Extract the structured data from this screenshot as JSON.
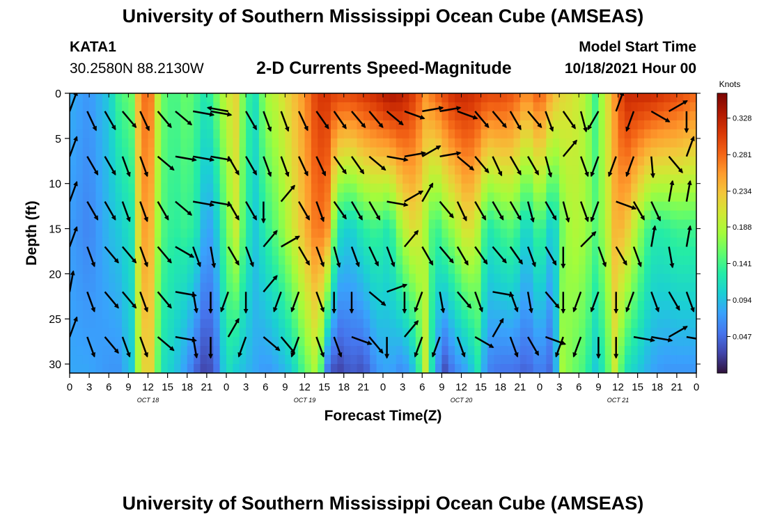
{
  "header": {
    "title": "University of Southern Mississippi Ocean Cube (AMSEAS)",
    "station_id": "KATA1",
    "location": "30.2580N  88.2130W",
    "subtitle": "2-D Currents Speed-Magnitude",
    "model_start_label": "Model Start Time",
    "model_start_value": "10/18/2021 Hour 00"
  },
  "footer": {
    "title": "University of Southern Mississippi Ocean Cube (AMSEAS)"
  },
  "chart_data": {
    "type": "heatmap",
    "title": "2-D Currents Speed-Magnitude",
    "xlabel": "Forecast Time(Z)",
    "ylabel": "Depth (ft)",
    "x_tick_labels": [
      "0",
      "3",
      "6",
      "9",
      "12",
      "15",
      "18",
      "21",
      "0",
      "3",
      "6",
      "9",
      "12",
      "15",
      "18",
      "21",
      "0",
      "3",
      "6",
      "9",
      "12",
      "15",
      "18",
      "21",
      "0",
      "3",
      "6",
      "9",
      "12",
      "15",
      "18",
      "21",
      "0"
    ],
    "x_range_hours": [
      0,
      96
    ],
    "day_labels": [
      {
        "text": "OCT 18",
        "hour": 12
      },
      {
        "text": "OCT 19",
        "hour": 36
      },
      {
        "text": "OCT 20",
        "hour": 60
      },
      {
        "text": "OCT 21",
        "hour": 84
      }
    ],
    "y_ticks": [
      0,
      5,
      10,
      15,
      20,
      25,
      30
    ],
    "y_tick_labels": [
      "0",
      "5",
      "10",
      "15",
      "20",
      "25",
      "30"
    ],
    "y_range_ft": [
      0,
      31
    ],
    "colorbar": {
      "label": "Knots",
      "ticks": [
        0.047,
        0.094,
        0.141,
        0.188,
        0.234,
        0.281,
        0.328
      ],
      "tick_labels": [
        "0.047",
        "0.094",
        "0.141",
        "0.188",
        "0.234",
        "0.281",
        "0.328"
      ],
      "range": [
        0.0,
        0.36
      ],
      "colors": [
        "#30123b",
        "#4145ab",
        "#4675ed",
        "#39a2fc",
        "#1bcfd4",
        "#24eca6",
        "#61fc6c",
        "#a4fc3b",
        "#d1e834",
        "#f3c63a",
        "#fe9b2d",
        "#f36315",
        "#d93806",
        "#b11901",
        "#7a0402"
      ]
    },
    "time_profile": [
      [
        0,
        0.085,
        0.075,
        0.08
      ],
      [
        3,
        0.07,
        0.06,
        0.08
      ],
      [
        6,
        0.1,
        0.09,
        0.07
      ],
      [
        7.5,
        0.14,
        0.1,
        0.07
      ],
      [
        9.5,
        0.16,
        0.12,
        0.1
      ],
      [
        11,
        0.28,
        0.26,
        0.22
      ],
      [
        12.5,
        0.27,
        0.24,
        0.22
      ],
      [
        14,
        0.16,
        0.15,
        0.12
      ],
      [
        16,
        0.14,
        0.13,
        0.1
      ],
      [
        18,
        0.16,
        0.14,
        0.07
      ],
      [
        19.5,
        0.14,
        0.12,
        0.04
      ],
      [
        21,
        0.12,
        0.07,
        0.02
      ],
      [
        22.5,
        0.16,
        0.1,
        0.05
      ],
      [
        24,
        0.2,
        0.16,
        0.12
      ],
      [
        25.5,
        0.22,
        0.2,
        0.1
      ],
      [
        27,
        0.14,
        0.13,
        0.09
      ],
      [
        28.5,
        0.12,
        0.1,
        0.08
      ],
      [
        30,
        0.18,
        0.13,
        0.07
      ],
      [
        32,
        0.2,
        0.16,
        0.08
      ],
      [
        34,
        0.23,
        0.2,
        0.1
      ],
      [
        36,
        0.26,
        0.24,
        0.15
      ],
      [
        38,
        0.31,
        0.28,
        0.19
      ],
      [
        39.5,
        0.31,
        0.26,
        0.05
      ],
      [
        41,
        0.3,
        0.12,
        0.02
      ],
      [
        43,
        0.3,
        0.1,
        0.04
      ],
      [
        45,
        0.31,
        0.13,
        0.03
      ],
      [
        47,
        0.32,
        0.14,
        0.07
      ],
      [
        49,
        0.34,
        0.12,
        0.08
      ],
      [
        51,
        0.33,
        0.19,
        0.06
      ],
      [
        53,
        0.3,
        0.22,
        0.1
      ],
      [
        54.5,
        0.26,
        0.18,
        0.2
      ],
      [
        56,
        0.28,
        0.13,
        0.08
      ],
      [
        57.5,
        0.3,
        0.16,
        0.03
      ],
      [
        59,
        0.32,
        0.18,
        0.06
      ],
      [
        61,
        0.32,
        0.22,
        0.08
      ],
      [
        62.5,
        0.31,
        0.19,
        0.12
      ],
      [
        64,
        0.3,
        0.12,
        0.06
      ],
      [
        66,
        0.3,
        0.14,
        0.05
      ],
      [
        68,
        0.29,
        0.15,
        0.05
      ],
      [
        70,
        0.26,
        0.1,
        0.04
      ],
      [
        72,
        0.29,
        0.15,
        0.06
      ],
      [
        74,
        0.24,
        0.09,
        0.04
      ],
      [
        75.5,
        0.22,
        0.16,
        0.18
      ],
      [
        77,
        0.21,
        0.19,
        0.16
      ],
      [
        79,
        0.19,
        0.18,
        0.14
      ],
      [
        80.5,
        0.14,
        0.15,
        0.1
      ],
      [
        82,
        0.2,
        0.18,
        0.13
      ],
      [
        83.5,
        0.26,
        0.24,
        0.2
      ],
      [
        85,
        0.32,
        0.24,
        0.12
      ],
      [
        87,
        0.32,
        0.18,
        0.1
      ],
      [
        89,
        0.32,
        0.13,
        0.08
      ],
      [
        91,
        0.31,
        0.13,
        0.07
      ],
      [
        93,
        0.3,
        0.14,
        0.07
      ],
      [
        96,
        0.28,
        0.14,
        0.07
      ]
    ],
    "vector_columns_hours": [
      0,
      2.7,
      5.4,
      8.1,
      10.8,
      13.5,
      16.2,
      18.9,
      21.6,
      24.3,
      27.0,
      29.7,
      32.4,
      35.1,
      37.8,
      40.5,
      43.2,
      45.9,
      48.6,
      51.3,
      54.0,
      56.7,
      59.4,
      62.1,
      64.8,
      67.5,
      70.2,
      72.9,
      75.6,
      78.3,
      81.0,
      83.7,
      86.4,
      89.1,
      91.8,
      94.5
    ],
    "vector_rows_ft": [
      2,
      7,
      12,
      17,
      22,
      27
    ],
    "vectors_deg": [
      [
        20,
        155,
        150,
        140,
        155,
        140,
        130,
        100,
        100,
        280,
        150,
        160,
        160,
        155,
        145,
        145,
        140,
        140,
        130,
        110,
        80,
        80,
        110,
        140,
        140,
        150,
        140,
        160,
        145,
        165,
        210,
        20,
        200,
        120,
        60,
        180
      ],
      [
        20,
        150,
        150,
        160,
        160,
        130,
        100,
        100,
        100,
        150,
        150,
        160,
        160,
        155,
        155,
        145,
        145,
        130,
        100,
        80,
        60,
        80,
        130,
        140,
        155,
        150,
        150,
        165,
        40,
        160,
        200,
        200,
        200,
        175,
        140,
        20
      ],
      [
        20,
        150,
        150,
        160,
        160,
        150,
        130,
        100,
        100,
        150,
        150,
        180,
        40,
        150,
        160,
        145,
        150,
        150,
        100,
        60,
        30,
        140,
        155,
        150,
        150,
        150,
        165,
        150,
        165,
        160,
        200,
        110,
        150,
        155,
        10,
        10
      ],
      [
        20,
        160,
        140,
        140,
        160,
        140,
        120,
        160,
        170,
        150,
        160,
        40,
        60,
        150,
        160,
        165,
        160,
        155,
        160,
        40,
        150,
        140,
        150,
        145,
        140,
        145,
        160,
        150,
        180,
        45,
        160,
        150,
        160,
        10,
        170,
        10
      ],
      [
        10,
        160,
        140,
        140,
        160,
        140,
        100,
        170,
        180,
        200,
        180,
        40,
        200,
        200,
        160,
        180,
        180,
        130,
        70,
        180,
        200,
        170,
        140,
        160,
        100,
        160,
        170,
        140,
        180,
        200,
        200,
        180,
        200,
        160,
        150,
        160
      ],
      [
        20,
        160,
        140,
        160,
        160,
        130,
        100,
        170,
        180,
        30,
        200,
        130,
        140,
        200,
        160,
        160,
        110,
        140,
        180,
        40,
        200,
        200,
        160,
        120,
        30,
        160,
        150,
        110,
        200,
        200,
        180,
        180,
        100,
        100,
        60,
        100
      ]
    ]
  }
}
